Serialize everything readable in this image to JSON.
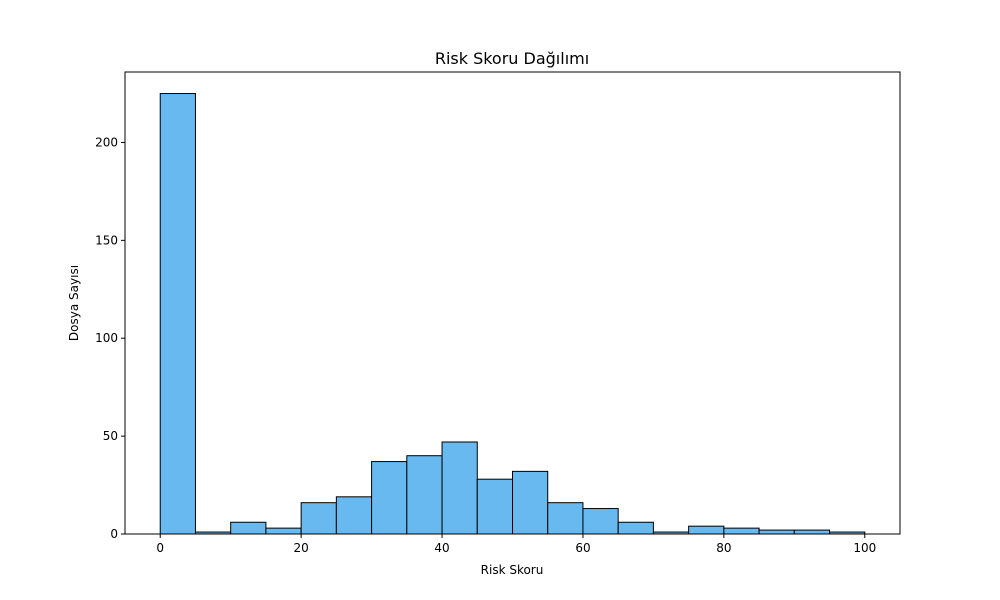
{
  "chart_data": {
    "type": "bar",
    "title": "Risk Skoru Dağılımı",
    "xlabel": "Risk Skoru",
    "ylabel": "Dosya Sayısı",
    "bin_edges": [
      0,
      5,
      10,
      15,
      20,
      25,
      30,
      35,
      40,
      45,
      50,
      55,
      60,
      65,
      70,
      75,
      80,
      85,
      90,
      95,
      100
    ],
    "values": [
      225,
      1,
      6,
      3,
      16,
      19,
      37,
      40,
      47,
      28,
      32,
      16,
      13,
      6,
      1,
      4,
      3,
      2,
      2,
      1
    ],
    "xlim": [
      -5,
      105
    ],
    "ylim": [
      0,
      236
    ],
    "xticks": [
      0,
      20,
      40,
      60,
      80,
      100
    ],
    "yticks": [
      0,
      50,
      100,
      150,
      200
    ],
    "grid": false,
    "bar_color": "#67b9f0",
    "edge_color": "#000000"
  }
}
